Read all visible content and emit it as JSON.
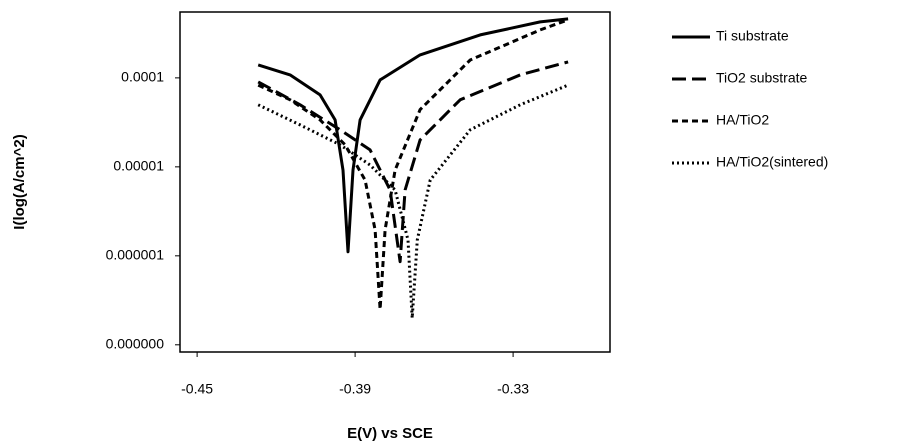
{
  "chart_data": {
    "type": "line",
    "x_label": "E(V) vs SCE",
    "y_label": "I(log(A/cm^2)",
    "xlim": [
      -0.4565,
      -0.2932
    ],
    "xticks": [
      -0.45,
      -0.39,
      -0.33
    ],
    "ylim": [
      8.3e-08,
      0.00055
    ],
    "yticks": [
      {
        "value": 1e-07,
        "label": "0.000000"
      },
      {
        "value": 1e-06,
        "label": "0.000001"
      },
      {
        "value": 1e-05,
        "label": "0.00001"
      },
      {
        "value": 0.0001,
        "label": "0.0001"
      }
    ],
    "log_y": true,
    "legend": "right",
    "series": [
      {
        "name": "Ti substrate",
        "color": "#000000",
        "dash": "solid",
        "x": [
          -0.4268,
          -0.4147,
          -0.4033,
          -0.3976,
          -0.3946,
          -0.3927,
          -0.3908,
          -0.3881,
          -0.3805,
          -0.3653,
          -0.3425,
          -0.3197,
          -0.3091
        ],
        "values": [
          0.00014,
          0.000108,
          6.44e-05,
          3.37e-05,
          9.2e-06,
          1.11e-06,
          9.2e-06,
          3.37e-05,
          9.5e-05,
          0.000181,
          0.000304,
          0.000426,
          0.00046
        ]
      },
      {
        "name": "TiO2 substrate",
        "color": "#000000",
        "dash": "long",
        "x": [
          -0.4268,
          -0.4109,
          -0.3957,
          -0.3843,
          -0.3767,
          -0.3729,
          -0.371,
          -0.3653,
          -0.3501,
          -0.3273,
          -0.3091
        ],
        "values": [
          9e-05,
          4.98e-05,
          2.61e-05,
          1.55e-05,
          5.5e-06,
          8.6e-07,
          5.5e-06,
          2.01e-05,
          5.67e-05,
          0.000108,
          0.000151
        ]
      },
      {
        "name": "HA/TiO2",
        "color": "#000000",
        "dash": "short",
        "x": [
          -0.4268,
          -0.4147,
          -0.4033,
          -0.3938,
          -0.3862,
          -0.3824,
          -0.3805,
          -0.3786,
          -0.3748,
          -0.3653,
          -0.3463,
          -0.3197,
          -0.3091
        ],
        "values": [
          8.3e-05,
          5.67e-05,
          3.37e-05,
          1.77e-05,
          7.1e-06,
          1.96e-06,
          2.5e-07,
          1.96e-06,
          9.2e-06,
          4.4e-05,
          0.000159,
          0.000346,
          0.00045
        ]
      },
      {
        "name": "HA/TiO2(sintered)",
        "color": "#000000",
        "dash": "dot",
        "x": [
          -0.4268,
          -0.4109,
          -0.3957,
          -0.3843,
          -0.3748,
          -0.3699,
          -0.3683,
          -0.3664,
          -0.3615,
          -0.3463,
          -0.3273,
          -0.3091
        ],
        "values": [
          4.98e-05,
          2.96e-05,
          1.77e-05,
          1.05e-05,
          5.5e-06,
          1.51e-06,
          2e-07,
          1.51e-06,
          7.1e-06,
          2.61e-05,
          4.98e-05,
          8.3e-05
        ]
      }
    ]
  }
}
